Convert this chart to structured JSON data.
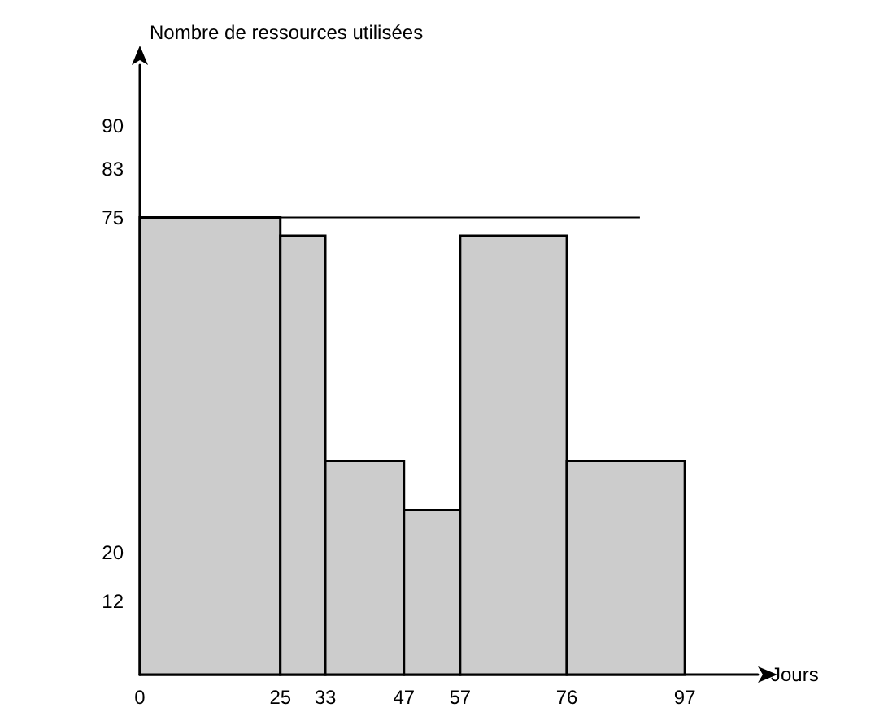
{
  "chart_data": {
    "type": "histogram",
    "xlabel": "Jours",
    "ylabel": "Nombre de ressources utilisées",
    "bins": [
      0,
      25,
      33,
      47,
      57,
      76,
      97
    ],
    "values": [
      75,
      72,
      35,
      27,
      72,
      35
    ],
    "color": "#cccccc",
    "series": [
      {
        "type": "line",
        "x": [
          0,
          89
        ],
        "values": [
          75,
          75
        ],
        "color": "#000000"
      }
    ],
    "marker": "none",
    "xlim": [
      0,
      110
    ],
    "xticks": [
      0,
      25,
      33,
      47,
      57,
      76,
      97
    ],
    "ylim": [
      0,
      100
    ],
    "yticks": [
      12,
      20,
      75,
      83,
      90
    ],
    "grid": false
  }
}
